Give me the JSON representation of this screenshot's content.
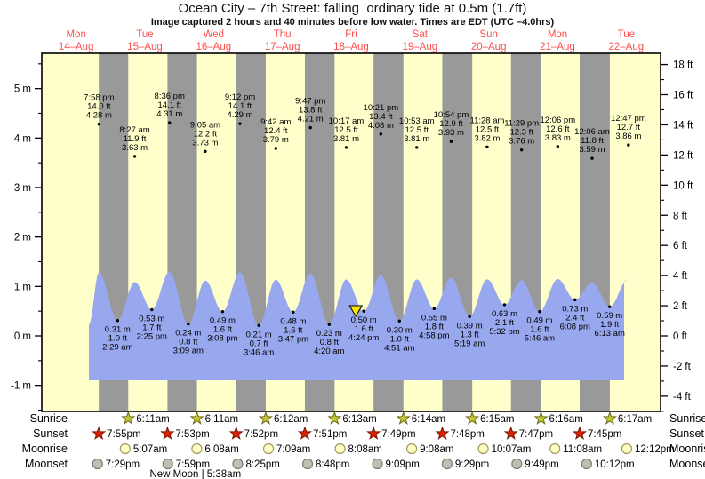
{
  "title": "Ocean City – 7th Street: falling  ordinary tide at 0.5m (1.7ft)",
  "subtitle": "Image captured 2 hours and 40 minutes before low water. Times are EDT (UTC –4.0hrs)",
  "days": [
    {
      "name": "Mon",
      "date": "14–Aug"
    },
    {
      "name": "Tue",
      "date": "15–Aug"
    },
    {
      "name": "Wed",
      "date": "16–Aug"
    },
    {
      "name": "Thu",
      "date": "17–Aug"
    },
    {
      "name": "Fri",
      "date": "18–Aug"
    },
    {
      "name": "Sat",
      "date": "19–Aug"
    },
    {
      "name": "Sun",
      "date": "20–Aug"
    },
    {
      "name": "Mon",
      "date": "21–Aug"
    },
    {
      "name": "Tue",
      "date": "22–Aug"
    }
  ],
  "y_axis_left": {
    "unit": "m",
    "ticks": [
      {
        "v": 5,
        "label": "5 m"
      },
      {
        "v": 4,
        "label": "4 m"
      },
      {
        "v": 3,
        "label": "3 m"
      },
      {
        "v": 2,
        "label": "2 m"
      },
      {
        "v": 1,
        "label": "1 m"
      },
      {
        "v": 0,
        "label": "0 m"
      },
      {
        "v": -1,
        "label": "-1 m"
      }
    ]
  },
  "y_axis_right": {
    "unit": "ft",
    "ticks": [
      {
        "v": 18,
        "label": "18 ft"
      },
      {
        "v": 16,
        "label": "16 ft"
      },
      {
        "v": 14,
        "label": "14 ft"
      },
      {
        "v": 12,
        "label": "12 ft"
      },
      {
        "v": 10,
        "label": "10 ft"
      },
      {
        "v": 8,
        "label": "8 ft"
      },
      {
        "v": 6,
        "label": "6 ft"
      },
      {
        "v": 4,
        "label": "4 ft"
      },
      {
        "v": 2,
        "label": "2 ft"
      },
      {
        "v": 0,
        "label": "0 ft"
      },
      {
        "v": -2,
        "label": "-2 ft"
      },
      {
        "v": -4,
        "label": "-4 ft"
      }
    ]
  },
  "chart_data": {
    "type": "area",
    "x_range_days": 9,
    "y_range_m": [
      -1.5,
      5.7
    ],
    "high_tides": [
      {
        "day": 0,
        "time": "7:58 pm",
        "ft": "14.0 ft",
        "m": "4.28 m"
      },
      {
        "day": 1,
        "time": "8:27 am",
        "ft": "11.9 ft",
        "m": "3.63 m"
      },
      {
        "day": 1,
        "time": "8:36 pm",
        "ft": "14.1 ft",
        "m": "4.31 m"
      },
      {
        "day": 2,
        "time": "9:05 am",
        "ft": "12.2 ft",
        "m": "3.73 m"
      },
      {
        "day": 2,
        "time": "9:12 pm",
        "ft": "14.1 ft",
        "m": "4.29 m"
      },
      {
        "day": 3,
        "time": "9:42 am",
        "ft": "12.4 ft",
        "m": "3.79 m"
      },
      {
        "day": 3,
        "time": "9:47 pm",
        "ft": "13.8 ft",
        "m": "4.21 m"
      },
      {
        "day": 4,
        "time": "10:17 am",
        "ft": "12.5 ft",
        "m": "3.81 m"
      },
      {
        "day": 4,
        "time": "10:21 pm",
        "ft": "13.4 ft",
        "m": "4.08 m"
      },
      {
        "day": 5,
        "time": "10:53 am",
        "ft": "12.5 ft",
        "m": "3.81 m"
      },
      {
        "day": 5,
        "time": "10:54 pm",
        "ft": "12.9 ft",
        "m": "3.93 m"
      },
      {
        "day": 6,
        "time": "11:28 am",
        "ft": "12.5 ft",
        "m": "3.82 m"
      },
      {
        "day": 6,
        "time": "11:29 pm",
        "ft": "12.3 ft",
        "m": "3.76 m"
      },
      {
        "day": 7,
        "time": "12:06 pm",
        "ft": "12.6 ft",
        "m": "3.83 m"
      },
      {
        "day": 8,
        "time": "12:06 am",
        "ft": "11.8 ft",
        "m": "3.59 m"
      },
      {
        "day": 8,
        "time": "12:47 pm",
        "ft": "12.7 ft",
        "m": "3.86 m"
      }
    ],
    "low_tides": [
      {
        "day": 1,
        "time": "2:29 am",
        "ft": "1.0 ft",
        "m": "0.31 m"
      },
      {
        "day": 1,
        "time": "2:25 pm",
        "ft": "1.7 ft",
        "m": "0.53 m"
      },
      {
        "day": 2,
        "time": "3:09 am",
        "ft": "0.8 ft",
        "m": "0.24 m"
      },
      {
        "day": 2,
        "time": "3:08 pm",
        "ft": "1.6 ft",
        "m": "0.49 m"
      },
      {
        "day": 3,
        "time": "3:46 am",
        "ft": "0.7 ft",
        "m": "0.21 m"
      },
      {
        "day": 3,
        "time": "3:47 pm",
        "ft": "1.6 ft",
        "m": "0.48 m"
      },
      {
        "day": 4,
        "time": "4:20 am",
        "ft": "0.8 ft",
        "m": "0.23 m"
      },
      {
        "day": 4,
        "time": "4:24 pm",
        "ft": "1.6 ft",
        "m": "0.50 m",
        "marker": true
      },
      {
        "day": 5,
        "time": "4:51 am",
        "ft": "1.0 ft",
        "m": "0.30 m"
      },
      {
        "day": 5,
        "time": "4:58 pm",
        "ft": "1.8 ft",
        "m": "0.55 m"
      },
      {
        "day": 6,
        "time": "5:19 am",
        "ft": "1.3 ft",
        "m": "0.39 m"
      },
      {
        "day": 6,
        "time": "5:32 pm",
        "ft": "2.1 ft",
        "m": "0.63 m"
      },
      {
        "day": 7,
        "time": "5:46 am",
        "ft": "1.6 ft",
        "m": "0.49 m"
      },
      {
        "day": 7,
        "time": "6:08 pm",
        "ft": "2.4 ft",
        "m": "0.73 m"
      },
      {
        "day": 8,
        "time": "6:13 am",
        "ft": "1.9 ft",
        "m": "0.59 m"
      }
    ]
  },
  "astro": {
    "rows": [
      {
        "label": "Sunrise",
        "type": "sun-rise",
        "entries": [
          {
            "day": 1,
            "time": "6:11am"
          },
          {
            "day": 2,
            "time": "6:11am"
          },
          {
            "day": 3,
            "time": "6:12am"
          },
          {
            "day": 4,
            "time": "6:13am"
          },
          {
            "day": 5,
            "time": "6:14am"
          },
          {
            "day": 6,
            "time": "6:15am"
          },
          {
            "day": 7,
            "time": "6:16am"
          },
          {
            "day": 8,
            "time": "6:17am"
          }
        ]
      },
      {
        "label": "Sunset",
        "type": "sun-set",
        "entries": [
          {
            "day": 0,
            "time": "7:55pm"
          },
          {
            "day": 1,
            "time": "7:53pm"
          },
          {
            "day": 2,
            "time": "7:52pm"
          },
          {
            "day": 3,
            "time": "7:51pm"
          },
          {
            "day": 4,
            "time": "7:49pm"
          },
          {
            "day": 5,
            "time": "7:48pm"
          },
          {
            "day": 6,
            "time": "7:47pm"
          },
          {
            "day": 7,
            "time": "7:45pm"
          }
        ]
      },
      {
        "label": "Moonrise",
        "type": "moon-rise",
        "entries": [
          {
            "day": 1,
            "time": "5:07am"
          },
          {
            "day": 2,
            "time": "6:08am"
          },
          {
            "day": 3,
            "time": "7:09am"
          },
          {
            "day": 4,
            "time": "8:08am"
          },
          {
            "day": 5,
            "time": "9:08am"
          },
          {
            "day": 6,
            "time": "10:07am"
          },
          {
            "day": 7,
            "time": "11:08am"
          },
          {
            "day": 8,
            "time": "12:12pm"
          }
        ]
      },
      {
        "label": "Moonset",
        "type": "moon-set",
        "entries": [
          {
            "day": 0,
            "time": "7:29pm"
          },
          {
            "day": 1,
            "time": "7:59pm"
          },
          {
            "day": 2,
            "time": "8:25pm"
          },
          {
            "day": 3,
            "time": "8:48pm"
          },
          {
            "day": 4,
            "time": "9:09pm"
          },
          {
            "day": 5,
            "time": "9:29pm"
          },
          {
            "day": 6,
            "time": "9:49pm"
          },
          {
            "day": 7,
            "time": "10:12pm"
          }
        ]
      }
    ],
    "new_moon": {
      "label": "New Moon | 5:38am",
      "day": 2,
      "time": "5:38am"
    }
  },
  "colors": {
    "plot_bg": "#ffffcc",
    "night_band": "#999999",
    "tide_fill": "#98a8ee",
    "day_label": "#ff4d4d",
    "marker_fill": "#ffe400",
    "sunrise_star": "#c6c62e",
    "sunset_star": "#dd2200",
    "moonrise_fill": "#ffffc4",
    "moonset_fill": "#bfbfb4",
    "axis": "#000000"
  }
}
